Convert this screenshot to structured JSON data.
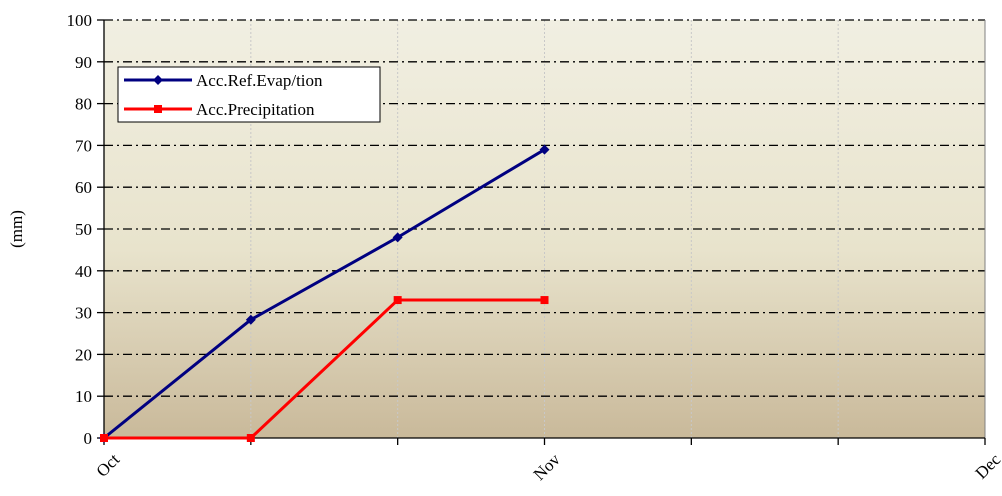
{
  "colors": {
    "plot_top": "#f1efe2",
    "plot_mid": "#e8e3cc",
    "plot_bottom": "#c9b99a",
    "grid_dark": "#000000",
    "grid_light": "#c8c8c8",
    "evap": "#000080",
    "precip": "#ff0000",
    "axis": "#000000"
  },
  "chart_data": {
    "type": "line",
    "title": "",
    "xlabel": "",
    "ylabel": "(mm)",
    "ylim": [
      0,
      100
    ],
    "y_ticks": [
      0,
      10,
      20,
      30,
      40,
      50,
      60,
      70,
      80,
      90,
      100
    ],
    "x_tick_labels": [
      "Oct",
      "Nov",
      "Dec"
    ],
    "x_categories_count": 7,
    "x_label_positions": [
      0,
      3,
      6
    ],
    "grid": true,
    "legend": {
      "placement": "top-left"
    },
    "series": [
      {
        "name": "Acc.Ref.Evap/tion",
        "marker": "diamond",
        "color": "#000080",
        "x": [
          0,
          1,
          2,
          3
        ],
        "values": [
          0,
          28.3,
          48,
          69
        ]
      },
      {
        "name": "Acc.Precipitation",
        "marker": "square",
        "color": "#ff0000",
        "x": [
          0,
          1,
          2,
          3
        ],
        "values": [
          0,
          0,
          33,
          33
        ]
      }
    ]
  }
}
